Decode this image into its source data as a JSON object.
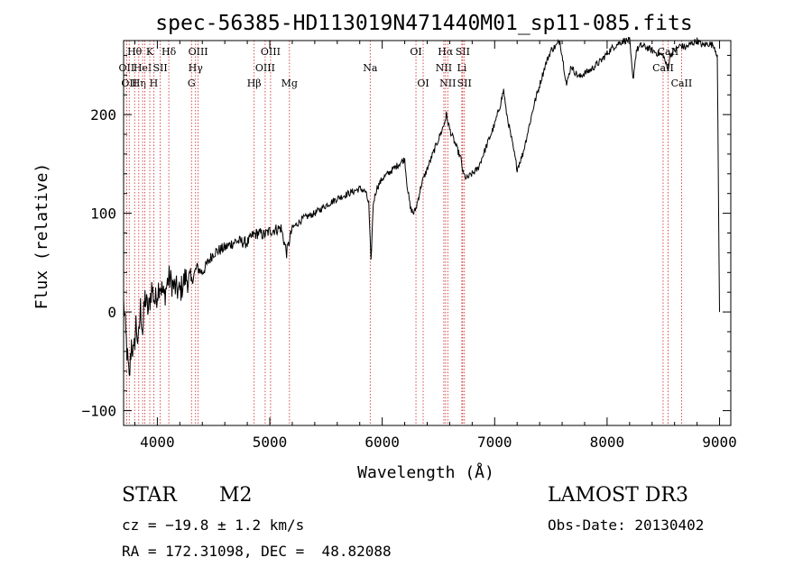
{
  "chart_data": {
    "type": "line",
    "title": "spec-56385-HD113019N471440M01_sp11-085.fits",
    "xlabel": "Wavelength (Å)",
    "ylabel": "Flux (relative)",
    "xlim": [
      3700,
      9100
    ],
    "ylim": [
      -115,
      275
    ],
    "xticks": [
      4000,
      5000,
      6000,
      7000,
      8000,
      9000
    ],
    "yticks": [
      -100,
      0,
      100,
      200
    ],
    "xtick_labels": [
      "4000",
      "5000",
      "6000",
      "7000",
      "8000",
      "9000"
    ],
    "ytick_labels": [
      "−100",
      "0",
      "100",
      "200"
    ],
    "grid": false,
    "legend": "none",
    "series": [
      {
        "name": "flux",
        "anchors": [
          [
            3700,
            10
          ],
          [
            3730,
            -40
          ],
          [
            3750,
            -70
          ],
          [
            3770,
            -30
          ],
          [
            3790,
            -45
          ],
          [
            3810,
            -10
          ],
          [
            3830,
            -35
          ],
          [
            3850,
            5
          ],
          [
            3870,
            -20
          ],
          [
            3890,
            15
          ],
          [
            3920,
            0
          ],
          [
            3950,
            25
          ],
          [
            3980,
            10
          ],
          [
            4020,
            30
          ],
          [
            4060,
            15
          ],
          [
            4100,
            35
          ],
          [
            4150,
            25
          ],
          [
            4200,
            20
          ],
          [
            4250,
            35
          ],
          [
            4300,
            30
          ],
          [
            4350,
            45
          ],
          [
            4400,
            40
          ],
          [
            4500,
            60
          ],
          [
            4600,
            65
          ],
          [
            4700,
            72
          ],
          [
            4800,
            70
          ],
          [
            4850,
            78
          ],
          [
            4900,
            80
          ],
          [
            4950,
            78
          ],
          [
            5000,
            82
          ],
          [
            5100,
            85
          ],
          [
            5150,
            60
          ],
          [
            5200,
            85
          ],
          [
            5300,
            95
          ],
          [
            5400,
            100
          ],
          [
            5500,
            108
          ],
          [
            5600,
            115
          ],
          [
            5700,
            120
          ],
          [
            5800,
            125
          ],
          [
            5850,
            122
          ],
          [
            5880,
            110
          ],
          [
            5900,
            50
          ],
          [
            5920,
            110
          ],
          [
            5950,
            125
          ],
          [
            6000,
            135
          ],
          [
            6050,
            140
          ],
          [
            6100,
            145
          ],
          [
            6150,
            150
          ],
          [
            6200,
            155
          ],
          [
            6220,
            130
          ],
          [
            6250,
            105
          ],
          [
            6280,
            100
          ],
          [
            6300,
            105
          ],
          [
            6350,
            130
          ],
          [
            6400,
            145
          ],
          [
            6450,
            160
          ],
          [
            6500,
            175
          ],
          [
            6550,
            190
          ],
          [
            6570,
            200
          ],
          [
            6600,
            185
          ],
          [
            6650,
            170
          ],
          [
            6700,
            155
          ],
          [
            6720,
            140
          ],
          [
            6750,
            135
          ],
          [
            6800,
            140
          ],
          [
            6850,
            145
          ],
          [
            6900,
            160
          ],
          [
            6950,
            175
          ],
          [
            7000,
            190
          ],
          [
            7050,
            210
          ],
          [
            7080,
            225
          ],
          [
            7100,
            205
          ],
          [
            7150,
            175
          ],
          [
            7200,
            145
          ],
          [
            7250,
            160
          ],
          [
            7300,
            185
          ],
          [
            7350,
            210
          ],
          [
            7400,
            230
          ],
          [
            7450,
            250
          ],
          [
            7500,
            265
          ],
          [
            7550,
            270
          ],
          [
            7580,
            275
          ],
          [
            7600,
            260
          ],
          [
            7640,
            230
          ],
          [
            7680,
            250
          ],
          [
            7700,
            245
          ],
          [
            7750,
            238
          ],
          [
            7800,
            242
          ],
          [
            7850,
            245
          ],
          [
            7900,
            250
          ],
          [
            7950,
            255
          ],
          [
            8000,
            262
          ],
          [
            8050,
            268
          ],
          [
            8100,
            272
          ],
          [
            8150,
            275
          ],
          [
            8200,
            275
          ],
          [
            8230,
            235
          ],
          [
            8260,
            265
          ],
          [
            8300,
            270
          ],
          [
            8350,
            268
          ],
          [
            8400,
            265
          ],
          [
            8450,
            262
          ],
          [
            8500,
            260
          ],
          [
            8540,
            245
          ],
          [
            8560,
            260
          ],
          [
            8600,
            265
          ],
          [
            8650,
            270
          ],
          [
            8700,
            268
          ],
          [
            8750,
            272
          ],
          [
            8800,
            275
          ],
          [
            8850,
            270
          ],
          [
            8900,
            272
          ],
          [
            8950,
            270
          ],
          [
            8980,
            260
          ],
          [
            8990,
            120
          ],
          [
            9000,
            0
          ]
        ]
      }
    ],
    "line_markers": [
      {
        "wavelength": 3727,
        "label": "OII",
        "row": 2
      },
      {
        "wavelength": 3750,
        "label": "OII",
        "row": 3
      },
      {
        "wavelength": 3798,
        "label": "Hθ",
        "row": 1
      },
      {
        "wavelength": 3835,
        "label": "Hη",
        "row": 3
      },
      {
        "wavelength": 3869,
        "label": "HeI",
        "row": 2
      },
      {
        "wavelength": 3889,
        "label": "",
        "row": 0
      },
      {
        "wavelength": 3933,
        "label": "K",
        "row": 1
      },
      {
        "wavelength": 3968,
        "label": "H",
        "row": 3
      },
      {
        "wavelength": 4026,
        "label": "SII",
        "row": 2
      },
      {
        "wavelength": 4102,
        "label": "Hδ",
        "row": 1
      },
      {
        "wavelength": 4304,
        "label": "G",
        "row": 3
      },
      {
        "wavelength": 4340,
        "label": "Hγ",
        "row": 2
      },
      {
        "wavelength": 4363,
        "label": "OIII",
        "row": 1
      },
      {
        "wavelength": 4861,
        "label": "Hβ",
        "row": 3
      },
      {
        "wavelength": 4959,
        "label": "OIII",
        "row": 2
      },
      {
        "wavelength": 5007,
        "label": "OIII",
        "row": 1
      },
      {
        "wavelength": 5175,
        "label": "Mg",
        "row": 3
      },
      {
        "wavelength": 5893,
        "label": "Na",
        "row": 2
      },
      {
        "wavelength": 6300,
        "label": "OI",
        "row": 1
      },
      {
        "wavelength": 6364,
        "label": "OI",
        "row": 3
      },
      {
        "wavelength": 6548,
        "label": "NII",
        "row": 2
      },
      {
        "wavelength": 6563,
        "label": "Hα",
        "row": 1
      },
      {
        "wavelength": 6583,
        "label": "NII",
        "row": 3
      },
      {
        "wavelength": 6708,
        "label": "Li",
        "row": 2
      },
      {
        "wavelength": 6716,
        "label": "SII",
        "row": 1
      },
      {
        "wavelength": 6731,
        "label": "SII",
        "row": 3
      },
      {
        "wavelength": 8498,
        "label": "CaII",
        "row": 2
      },
      {
        "wavelength": 8542,
        "label": "CaII",
        "row": 1
      },
      {
        "wavelength": 8662,
        "label": "CaII",
        "row": 3
      }
    ]
  },
  "info": {
    "object_class": "STAR",
    "subclass": "M2",
    "redshift": "cz = −19.8 ± 1.2 km/s",
    "coords": "RA = 172.31098, DEC =  48.82088",
    "survey": "LAMOST DR3",
    "obs_date": "Obs-Date: 20130402"
  },
  "colors": {
    "spectrum": "#000000",
    "marker_line": "#cc2222",
    "text": "#000000",
    "background": "#ffffff"
  }
}
